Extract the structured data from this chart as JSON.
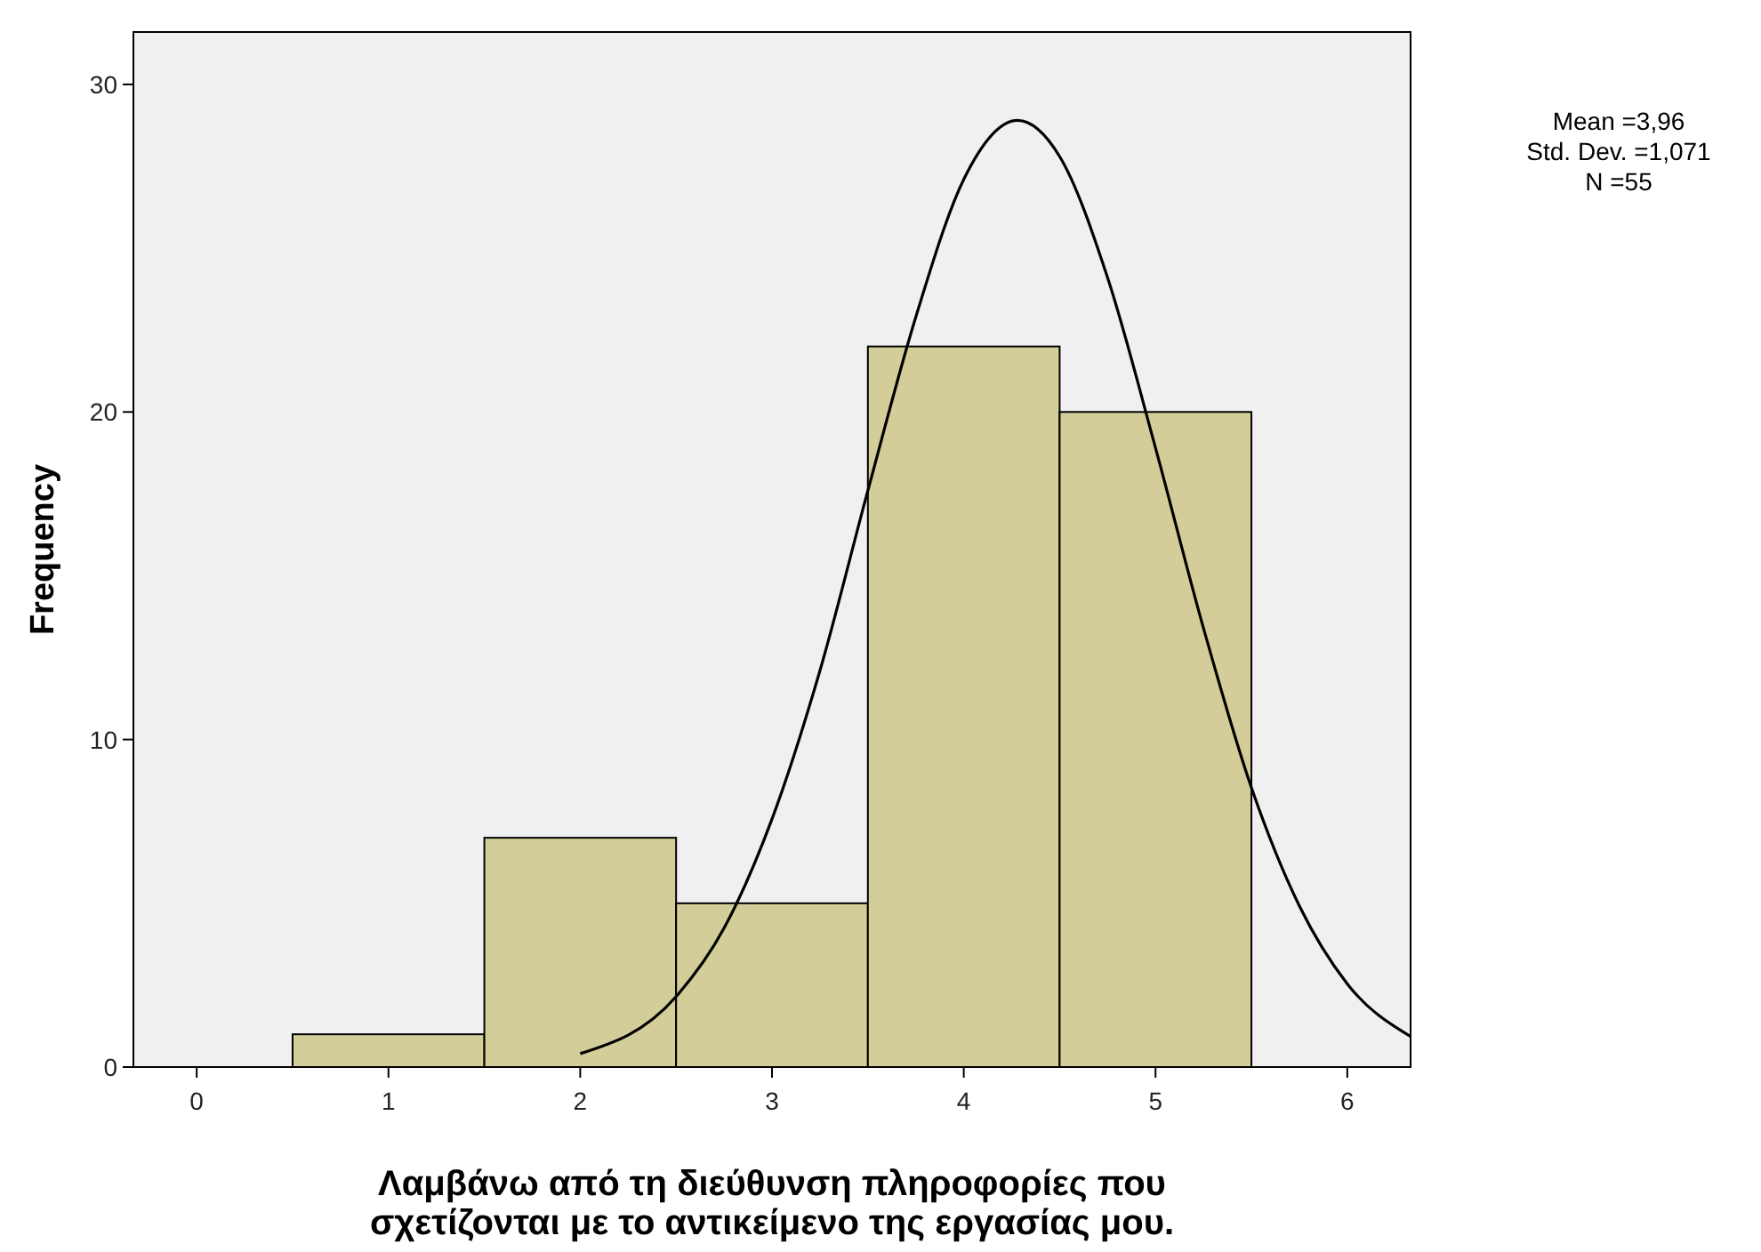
{
  "chart_data": {
    "type": "histogram",
    "xlabel": "Λαμβάνω από τη διεύθυνση πληροφορίες που\nσχετίζονται με το αντικείμενο της εργασίας μου.",
    "ylabel": "Frequency",
    "bins": [
      0.5,
      1.5,
      2.5,
      3.5,
      4.5,
      5.5
    ],
    "values": [
      1,
      7,
      5,
      22,
      20
    ],
    "color": "#d3ce99",
    "series": [
      {
        "type": "line",
        "color": "#000000",
        "x": [
          2,
          2.5,
          2.75,
          3,
          3.25,
          3.5,
          3.75,
          4,
          4.28,
          4.5,
          4.75,
          5,
          5.25,
          5.5,
          5.75,
          6,
          6.33
        ],
        "values": [
          0.41,
          2.15,
          4.24,
          7.57,
          12.1,
          17.6,
          22.9,
          27.1,
          28.9,
          27.8,
          24.1,
          18.9,
          13.4,
          8.53,
          4.92,
          2.54,
          0.93
        ]
      }
    ],
    "xlim": [
      -0.33,
      6.33
    ],
    "ylim": [
      0,
      31.6
    ],
    "xticks": [
      0,
      1,
      2,
      3,
      4,
      5,
      6
    ],
    "yticks": [
      0,
      10,
      20,
      30
    ],
    "grid": false,
    "annotations": [
      "Mean =3,96",
      "Std. Dev. =1,071",
      "N =55"
    ]
  }
}
